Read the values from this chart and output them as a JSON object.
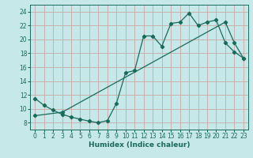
{
  "xlabel": "Humidex (Indice chaleur)",
  "bg_color": "#c6e8e8",
  "grid_color": "#c8a8a8",
  "line_color": "#1a6a5a",
  "xlim": [
    -0.5,
    23.5
  ],
  "ylim": [
    7,
    25
  ],
  "xticks": [
    0,
    1,
    2,
    3,
    4,
    5,
    6,
    7,
    8,
    9,
    10,
    11,
    12,
    13,
    14,
    15,
    16,
    17,
    18,
    19,
    20,
    21,
    22,
    23
  ],
  "yticks": [
    8,
    10,
    12,
    14,
    16,
    18,
    20,
    22,
    24
  ],
  "line1_x": [
    0,
    1,
    2,
    3,
    4,
    5,
    6,
    7,
    8,
    9,
    10,
    11,
    12,
    13,
    14,
    15,
    16,
    17,
    18,
    19,
    20,
    21,
    22,
    23
  ],
  "line1_y": [
    11.5,
    10.5,
    9.8,
    9.2,
    8.8,
    8.5,
    8.2,
    8.0,
    8.3,
    10.8,
    15.2,
    15.5,
    20.5,
    20.5,
    19.0,
    22.3,
    22.5,
    23.8,
    22.0,
    22.5,
    22.8,
    19.5,
    18.2,
    17.3
  ],
  "line2_x": [
    0,
    3,
    21,
    22,
    23
  ],
  "line2_y": [
    9.0,
    9.5,
    22.5,
    19.5,
    17.3
  ]
}
